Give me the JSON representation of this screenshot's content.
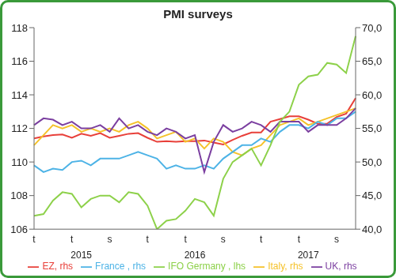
{
  "chart_data": {
    "type": "line",
    "title": "PMI surveys",
    "categories": [
      "t",
      null,
      null,
      null,
      "t",
      null,
      null,
      null,
      "s",
      null,
      null,
      null,
      "t",
      null,
      null,
      null,
      "t",
      null,
      null,
      null,
      "s",
      null,
      null,
      null,
      "t",
      null,
      null,
      null,
      "t",
      null,
      null,
      null,
      "s",
      null,
      null
    ],
    "year_labels": [
      null,
      null,
      null,
      null,
      null,
      "2015",
      null,
      null,
      null,
      null,
      null,
      null,
      null,
      null,
      null,
      null,
      null,
      "2016",
      null,
      null,
      null,
      null,
      null,
      null,
      null,
      null,
      null,
      null,
      null,
      "2017",
      null,
      null,
      null,
      null,
      null
    ],
    "ylim": [
      106,
      118
    ],
    "yticks": [
      106,
      108,
      110,
      112,
      114,
      116,
      118
    ],
    "y2lim": [
      40,
      70
    ],
    "y2ticks": [
      {
        "value": 40,
        "label": "40,0"
      },
      {
        "value": 45,
        "label": "45,0"
      },
      {
        "value": 50,
        "label": "50,0"
      },
      {
        "value": 55,
        "label": "55,0"
      },
      {
        "value": 60,
        "label": "60,0"
      },
      {
        "value": 65,
        "label": "65,0"
      },
      {
        "value": 70,
        "label": "70,0"
      }
    ],
    "grid": false,
    "legend": "bottom",
    "series": [
      {
        "name": "EZ, rhs",
        "color": "#e8403a",
        "axis": "y2",
        "values": [
          53.5,
          53.8,
          54.0,
          54.1,
          53.6,
          54.2,
          53.9,
          54.3,
          53.6,
          53.9,
          54.2,
          54.3,
          53.6,
          53.0,
          53.1,
          53.0,
          53.1,
          53.1,
          53.2,
          52.9,
          52.6,
          53.3,
          53.9,
          54.4,
          54.4,
          56.0,
          56.4,
          56.8,
          56.8,
          56.3,
          55.7,
          55.7,
          56.7,
          57.2,
          59.5
        ]
      },
      {
        "name": "Italy, rhs",
        "color": "#f5c22a",
        "axis": "y2",
        "values": [
          52.5,
          54.0,
          55.5,
          55.0,
          55.5,
          54.5,
          55.0,
          54.5,
          55.0,
          54.5,
          55.5,
          56.0,
          55.0,
          53.5,
          54.0,
          54.5,
          53.0,
          53.5,
          52.0,
          53.5,
          53.0,
          51.5,
          51.0,
          52.0,
          52.5,
          54.0,
          55.5,
          56.0,
          56.5,
          55.5,
          56.0,
          56.5,
          57.0,
          57.5,
          58.0
        ]
      },
      {
        "name": "France , rhs",
        "color": "#4db3e6",
        "axis": "y2",
        "values": [
          49.5,
          48.5,
          49.0,
          48.8,
          50.0,
          50.2,
          49.5,
          50.5,
          50.5,
          50.5,
          51.0,
          51.5,
          51.0,
          50.5,
          49.0,
          49.5,
          49.0,
          49.0,
          49.5,
          49.0,
          50.5,
          51.5,
          52.5,
          52.5,
          53.5,
          53.0,
          54.5,
          55.5,
          55.5,
          55.0,
          56.0,
          55.5,
          56.5,
          56.5,
          57.5
        ]
      },
      {
        "name": "UK, rhs",
        "color": "#7b3fa0",
        "axis": "y2",
        "values": [
          55.5,
          56.5,
          56.3,
          55.5,
          56.0,
          55.0,
          55.0,
          55.5,
          54.5,
          56.5,
          55.0,
          55.5,
          54.5,
          54.0,
          55.0,
          54.5,
          53.5,
          54.0,
          48.5,
          53.0,
          55.5,
          54.5,
          55.0,
          56.0,
          55.5,
          54.5,
          56.0,
          56.0,
          56.0,
          54.5,
          55.5,
          55.5,
          55.5,
          56.5,
          58.0
        ]
      },
      {
        "name": "IFO Germany , lhs",
        "color": "#8dd14a",
        "axis": "y",
        "values": [
          106.8,
          106.9,
          107.7,
          108.2,
          108.1,
          107.3,
          107.8,
          108.0,
          108.0,
          107.6,
          108.2,
          108.1,
          107.4,
          106.0,
          106.5,
          106.6,
          107.1,
          107.8,
          107.6,
          106.8,
          109.0,
          110.0,
          110.4,
          110.8,
          109.8,
          111.0,
          112.4,
          113.0,
          114.6,
          115.1,
          115.2,
          115.9,
          115.8,
          115.3,
          117.5
        ]
      }
    ]
  }
}
